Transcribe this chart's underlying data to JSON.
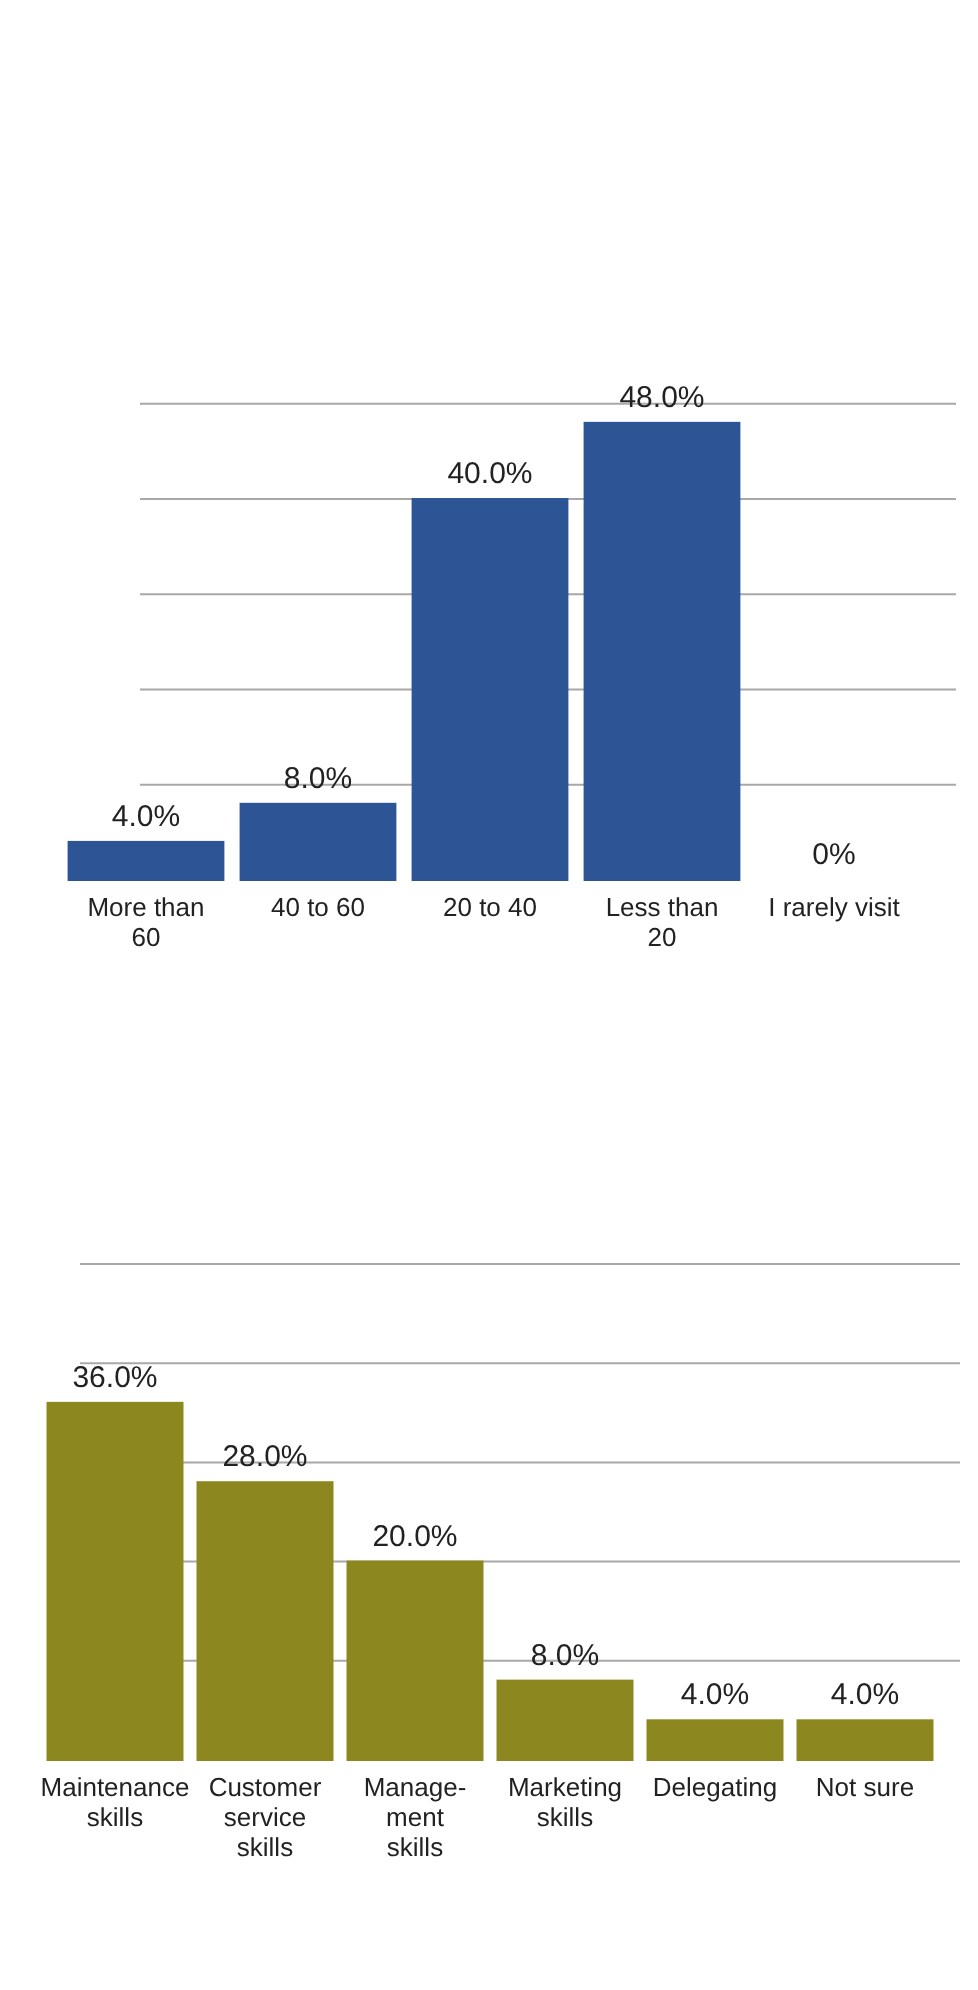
{
  "chart_data": [
    {
      "type": "bar",
      "categories": [
        "More than 60",
        "40 to 60",
        "20 to 40",
        "Less than 20",
        "I rarely visit"
      ],
      "values": [
        4,
        8,
        40,
        48,
        0
      ],
      "value_labels": [
        "4.0%",
        "8.0%",
        "40.0%",
        "48.0%",
        "0%"
      ],
      "color": "#2d5596",
      "grid": "y",
      "tick_labels": "x"
    },
    {
      "type": "bar",
      "categories": [
        "Maintenance skills",
        "Customer service skills",
        "Manage-ment skills",
        "Marketing skills",
        "Delegating",
        "Not sure"
      ],
      "values": [
        36,
        28,
        20,
        8,
        4,
        4
      ],
      "value_labels": [
        "36.0%",
        "28.0%",
        "20.0%",
        "8.0%",
        "4.0%",
        "4.0%"
      ],
      "color": "#8c871f",
      "grid": "y",
      "tick_labels": "x"
    }
  ]
}
